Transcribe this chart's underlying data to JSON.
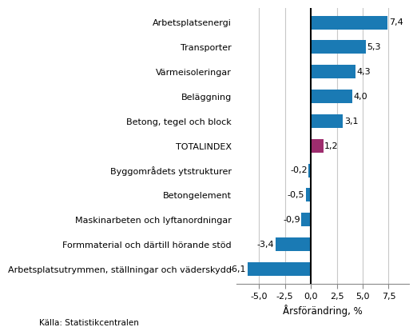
{
  "categories": [
    "Arbetsplatsutrymmen, ställningar och väderskydd",
    "Formmaterial och därtill hörande stöd",
    "Maskinarbeten och lyftanordningar",
    "Betongelement",
    "Byggområdets ytstrukturer",
    "TOTALINDEX",
    "Betong, tegel och block",
    "Beläggning",
    "Värmeisoleringar",
    "Transporter",
    "Arbetsplatsenergi"
  ],
  "values": [
    -6.1,
    -3.4,
    -0.9,
    -0.5,
    -0.2,
    1.2,
    3.1,
    4.0,
    4.3,
    5.3,
    7.4
  ],
  "bar_colors": [
    "#1a7ab4",
    "#1a7ab4",
    "#1a7ab4",
    "#1a7ab4",
    "#1a7ab4",
    "#9e2d6e",
    "#1a7ab4",
    "#1a7ab4",
    "#1a7ab4",
    "#1a7ab4",
    "#1a7ab4"
  ],
  "value_labels": [
    "-6,1",
    "-3,4",
    "-0,9",
    "-0,5",
    "-0,2",
    "1,2",
    "3,1",
    "4,0",
    "4,3",
    "5,3",
    "7,4"
  ],
  "xlabel": "Årsförändring, %",
  "source": "Källa: Statistikcentralen",
  "xlim": [
    -7.2,
    9.5
  ],
  "xticks": [
    -5.0,
    -2.5,
    0.0,
    2.5,
    5.0,
    7.5
  ],
  "xtick_labels": [
    "-5,0",
    "-2,5",
    "0,0",
    "2,5",
    "5,0",
    "7,5"
  ],
  "background_color": "#ffffff",
  "grid_color": "#c8c8c8",
  "bar_height": 0.55,
  "label_fontsize": 8.0,
  "value_fontsize": 8.0,
  "xlabel_fontsize": 8.5,
  "source_fontsize": 7.5
}
